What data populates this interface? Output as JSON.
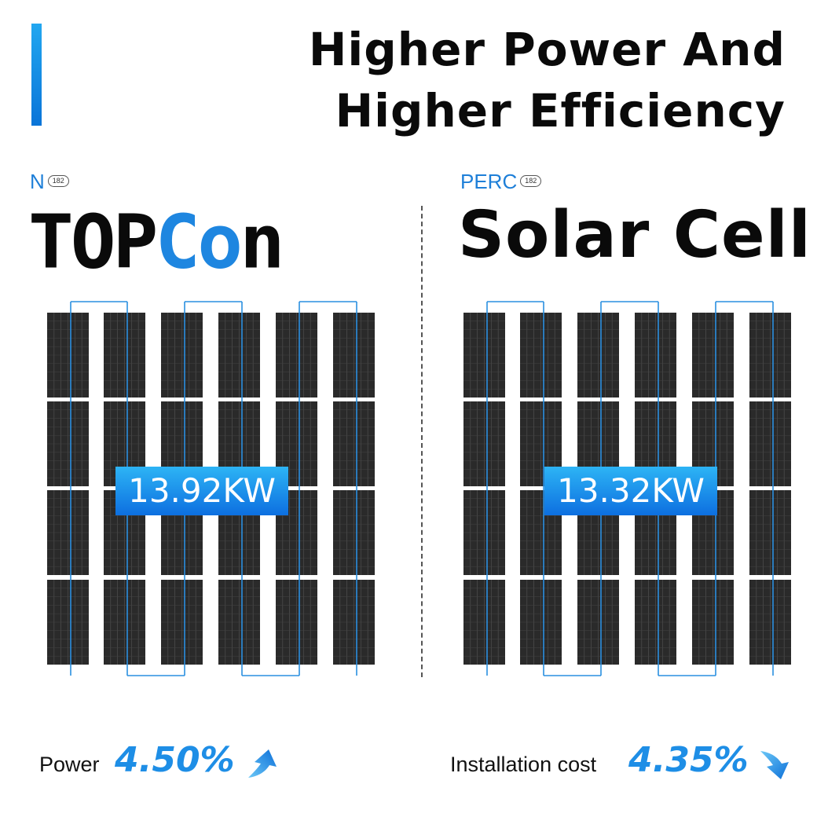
{
  "title": {
    "line1": "Higher Power And",
    "line2": "Higher Efficiency"
  },
  "left": {
    "tag": "N",
    "chip": "182",
    "name_parts": [
      "TOP",
      "Co",
      "n"
    ],
    "kw": "13.92KW",
    "metric_label": "Power",
    "metric_value": "4.50%",
    "metric_icon": "arrow-up-icon"
  },
  "right": {
    "tag": "PERC",
    "chip": "182",
    "name": "Solar Cell",
    "kw": "13.32KW",
    "metric_label": "Installation cost",
    "metric_value": "4.35%",
    "metric_icon": "arrow-down-icon"
  },
  "colors": {
    "accent": "#1e86e0",
    "panel": "#2a2a2a",
    "wire": "#2a8fe0"
  }
}
